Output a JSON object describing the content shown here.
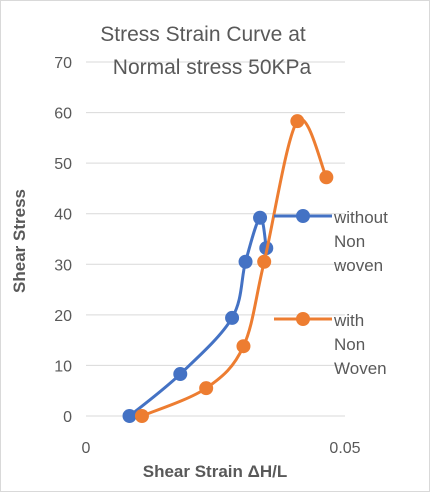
{
  "chart_data": {
    "type": "scatter",
    "title_lines": [
      "Stress Strain Curve at",
      "Normal stress 50KPa"
    ],
    "xlabel": "Shear Strain ΔH/L",
    "ylabel": "Shear Stress",
    "xlim": [
      0,
      0.05
    ],
    "ylim": [
      0,
      70
    ],
    "x_ticks": [
      0,
      0.05
    ],
    "x_tick_labels": [
      "0",
      "0.05"
    ],
    "y_ticks": [
      0,
      10,
      20,
      30,
      40,
      50,
      60,
      70
    ],
    "y_tick_labels": [
      "0",
      "10",
      "20",
      "30",
      "40",
      "50",
      "60",
      "70"
    ],
    "grid": "horizontal",
    "legend_position": "right",
    "series": [
      {
        "name_lines": [
          "without",
          "Non",
          "woven"
        ],
        "color": "#4472c4",
        "x": [
          0.0084,
          0.0182,
          0.0282,
          0.0308,
          0.0336,
          0.0348
        ],
        "y": [
          0,
          8.3,
          19.4,
          30.5,
          39.2,
          33.2
        ]
      },
      {
        "name_lines": [
          "with",
          "Non",
          "Woven"
        ],
        "color": "#ed7d31",
        "x": [
          0.0108,
          0.0232,
          0.0304,
          0.0344,
          0.0408,
          0.0464
        ],
        "y": [
          0,
          5.5,
          13.8,
          30.5,
          58.3,
          47.2
        ]
      }
    ]
  }
}
